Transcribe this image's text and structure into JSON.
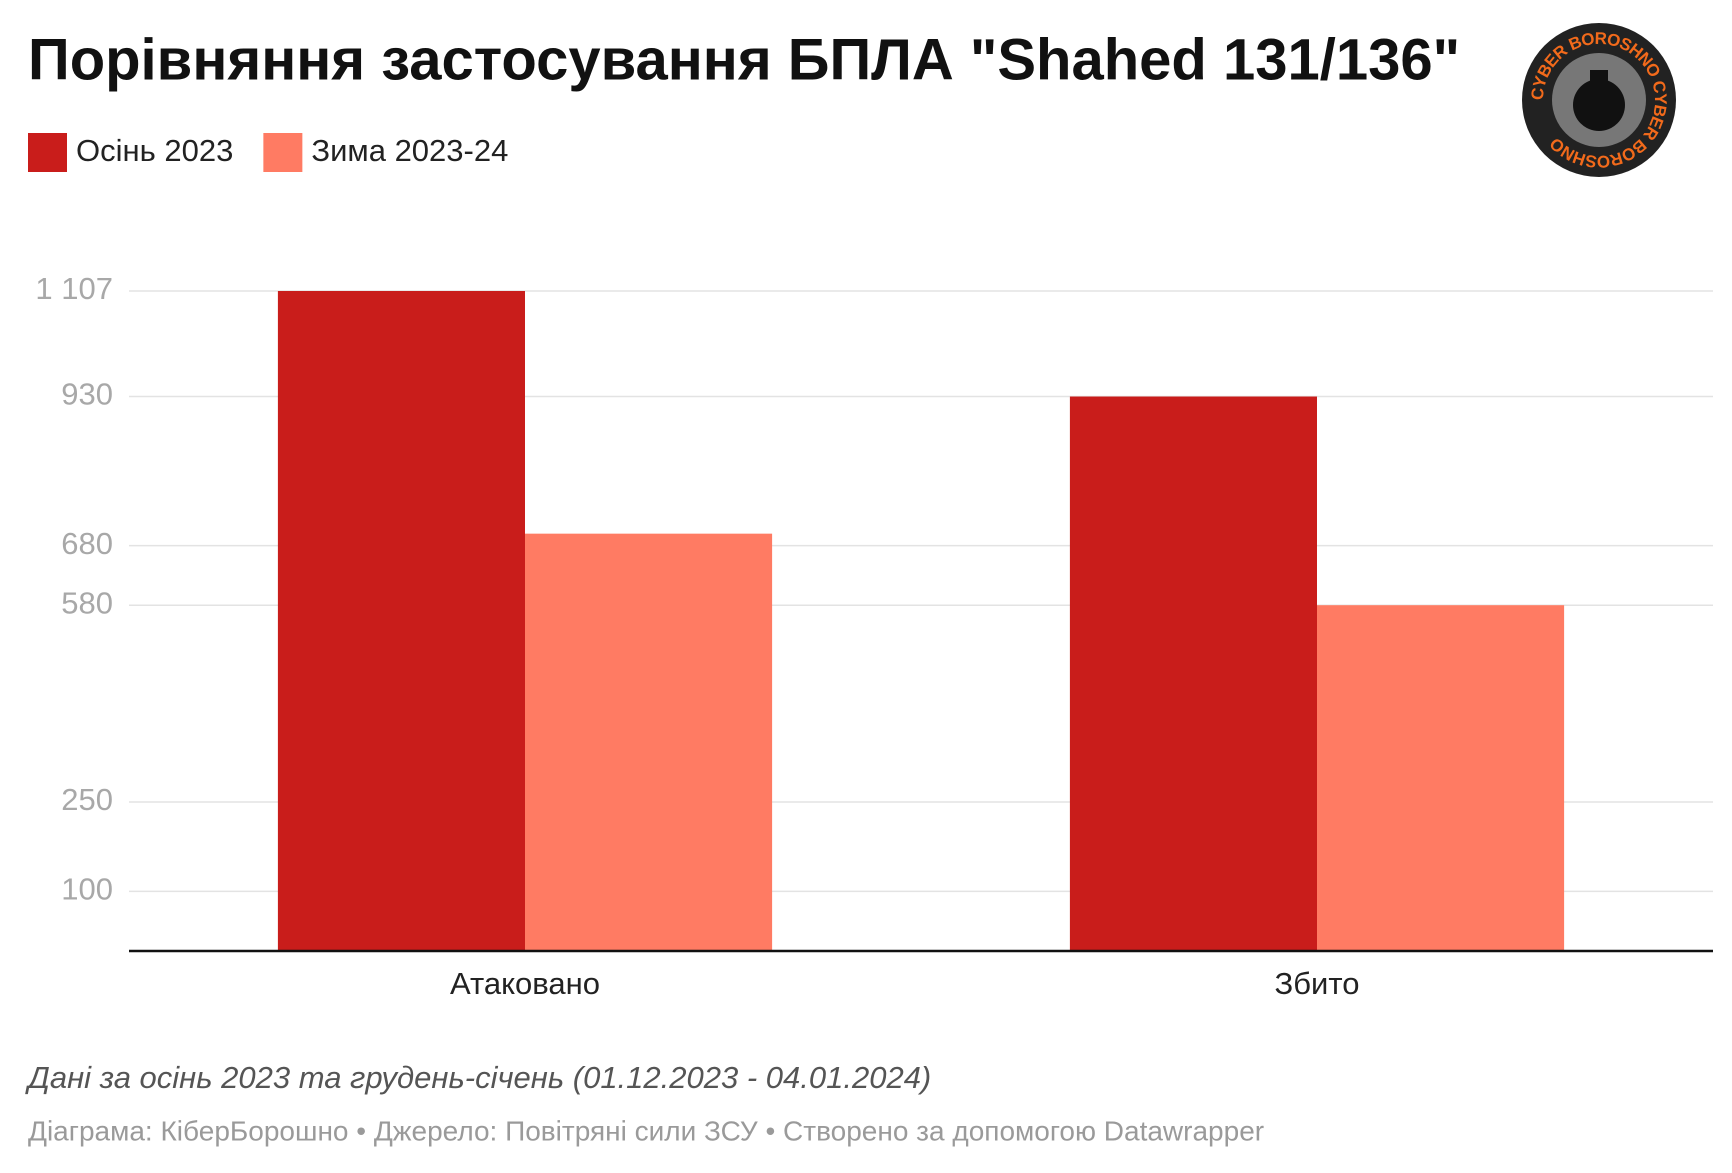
{
  "chart_data": {
    "type": "bar",
    "title": "Порівняння застосування БПЛА \"Shahed 131/136\"",
    "categories": [
      "Атаковано",
      "Збито"
    ],
    "series": [
      {
        "name": "Осінь 2023",
        "color": "#c91d1b",
        "values": [
          1107,
          930
        ]
      },
      {
        "name": "Зима 2023-24",
        "color": "#ff7b63",
        "values": [
          700,
          580
        ]
      }
    ],
    "ylim": [
      0,
      1107
    ],
    "yticks": [
      100,
      250,
      580,
      680,
      930,
      {
        "value": 1107,
        "label": "1 107"
      }
    ],
    "grid": true,
    "note": "Дані за осінь 2023 та грудень-січень (01.12.2023 - 04.01.2024)",
    "source": "Діаграма: КіберБорошно • Джерело: Повітряні сили ЗСУ • Створено за допомогою Datawrapper"
  },
  "logo_text": "CYBER BOROSHNO CYBER BOROSHNO"
}
